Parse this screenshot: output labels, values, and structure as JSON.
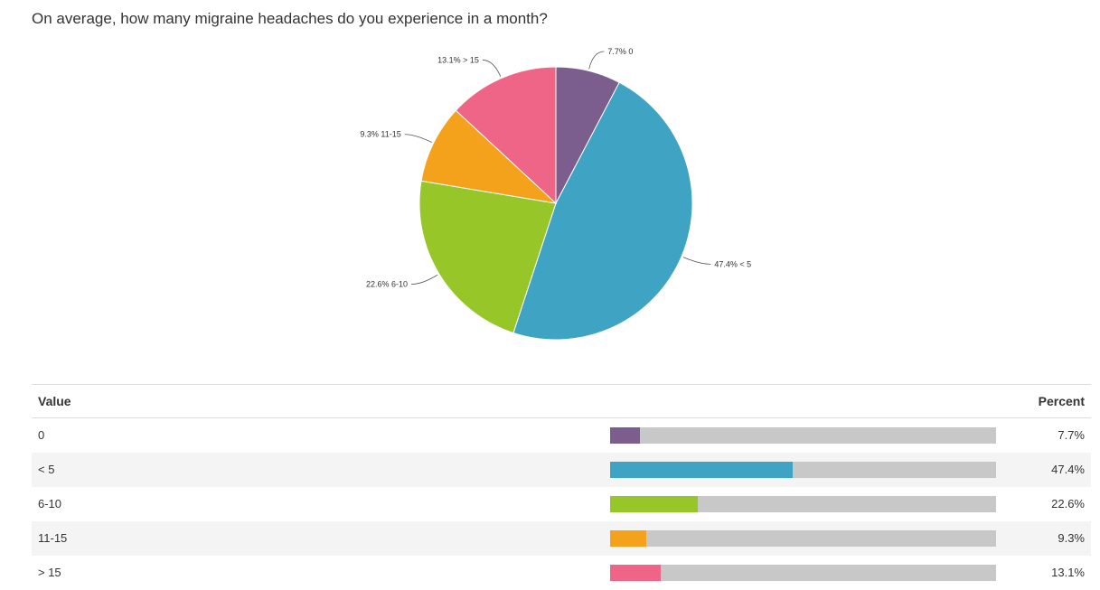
{
  "question": "On average, how many migraine headaches do you experience in a month?",
  "chart_data": {
    "type": "pie",
    "title": "On average, how many migraine headaches do you experience in a month?",
    "categories": [
      "0",
      "< 5",
      "6-10",
      "11-15",
      "> 15"
    ],
    "values": [
      7.7,
      47.4,
      22.6,
      9.3,
      13.1
    ],
    "labels": [
      "7.7% 0",
      "47.4% < 5",
      "22.6% 6-10",
      "9.3% 11-15",
      "13.1% > 15"
    ],
    "colors": [
      "#7b5e8e",
      "#3fa3c3",
      "#96c627",
      "#f4a21b",
      "#ef6587"
    ]
  },
  "table": {
    "header_value": "Value",
    "header_percent": "Percent",
    "rows": [
      {
        "value": "0",
        "percent": "7.7%",
        "fraction": 0.077,
        "color": "#7b5e8e"
      },
      {
        "value": "< 5",
        "percent": "47.4%",
        "fraction": 0.474,
        "color": "#3fa3c3"
      },
      {
        "value": "6-10",
        "percent": "22.6%",
        "fraction": 0.226,
        "color": "#96c627"
      },
      {
        "value": "11-15",
        "percent": "9.3%",
        "fraction": 0.093,
        "color": "#f4a21b"
      },
      {
        "value": "> 15",
        "percent": "13.1%",
        "fraction": 0.131,
        "color": "#ef6587"
      }
    ]
  }
}
